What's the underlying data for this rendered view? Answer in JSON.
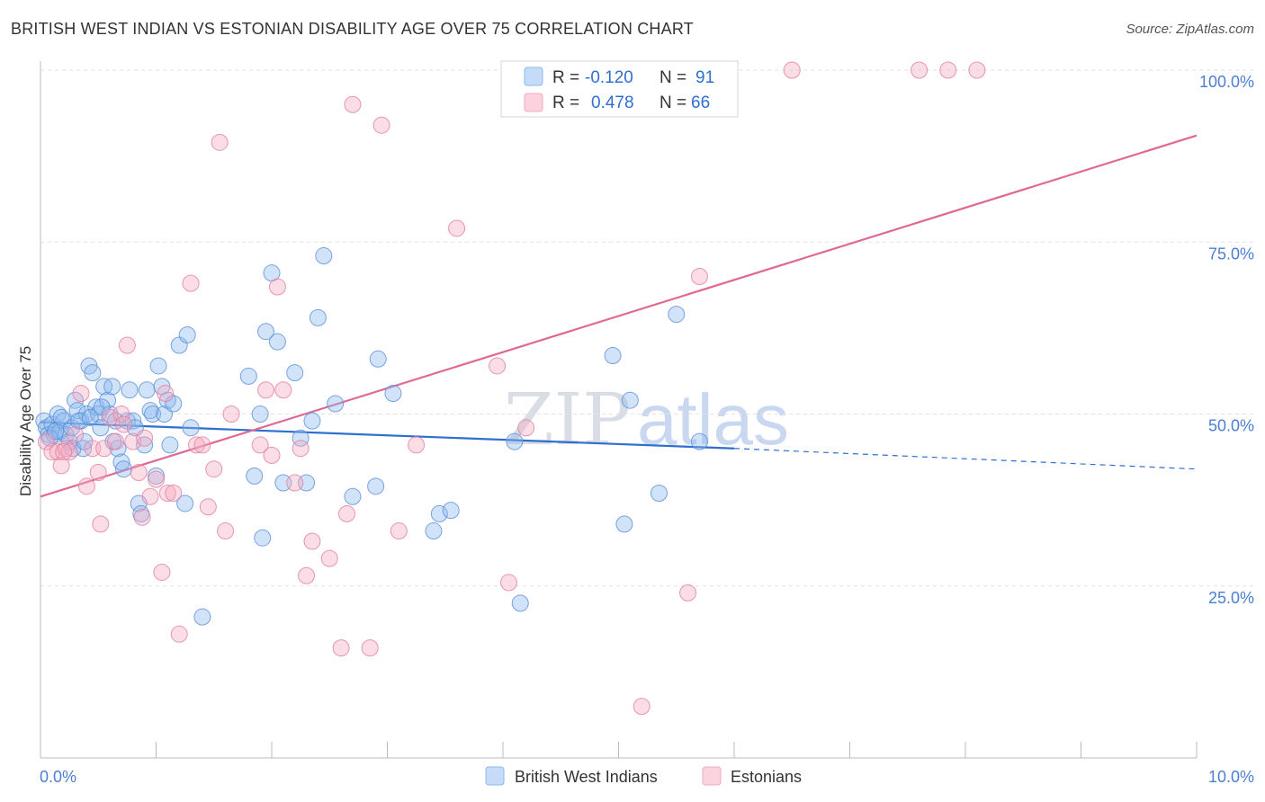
{
  "title": "BRITISH WEST INDIAN VS ESTONIAN DISABILITY AGE OVER 75 CORRELATION CHART",
  "source": "Source: ZipAtlas.com",
  "watermark": {
    "part1": "ZIP",
    "part2": "atlas"
  },
  "legend": {
    "rows": [
      {
        "r_label": "R =",
        "r_value": "-0.120",
        "n_label": "N =",
        "n_value": "91",
        "color": "#8db8ee"
      },
      {
        "r_label": "R =",
        "r_value": "0.478",
        "n_label": "N =",
        "n_value": "66",
        "color": "#f4a9c0"
      }
    ]
  },
  "bottom_legend": [
    {
      "label": "British West Indians",
      "color": "#8db8ee"
    },
    {
      "label": "Estonians",
      "color": "#f4a9c0"
    }
  ],
  "chart_data": {
    "type": "scatter",
    "title": "BRITISH WEST INDIAN VS ESTONIAN DISABILITY AGE OVER 75 CORRELATION CHART",
    "xlabel": "",
    "ylabel": "Disability Age Over 75",
    "xlim": [
      0,
      10
    ],
    "ylim": [
      0,
      102
    ],
    "x_tick_labels": {
      "min": "0.0%",
      "max": "10.0%"
    },
    "y_ticks": [
      {
        "value": 25,
        "label": "25.0%"
      },
      {
        "value": 50,
        "label": "50.0%"
      },
      {
        "value": 75,
        "label": "75.0%"
      },
      {
        "value": 100,
        "label": "100.0%"
      }
    ],
    "grid": true,
    "series": [
      {
        "name": "British West Indians",
        "color": "#8db8ee",
        "stroke": "#5b8fd8",
        "trend": {
          "x0": 0.0,
          "y0": 48.8,
          "x1": 6.0,
          "y1": 45.0,
          "dash_to_x": 10.0,
          "dash_to_y": 42.0,
          "color": "#2f6fd0"
        },
        "points": [
          [
            0.03,
            49
          ],
          [
            0.05,
            48
          ],
          [
            0.07,
            47
          ],
          [
            0.1,
            48.5
          ],
          [
            0.12,
            47
          ],
          [
            0.15,
            50
          ],
          [
            0.17,
            47.5
          ],
          [
            0.2,
            49
          ],
          [
            0.22,
            47
          ],
          [
            0.25,
            46
          ],
          [
            0.27,
            48
          ],
          [
            0.3,
            52
          ],
          [
            0.32,
            50.5
          ],
          [
            0.35,
            49
          ],
          [
            0.37,
            45
          ],
          [
            0.4,
            50
          ],
          [
            0.42,
            57
          ],
          [
            0.45,
            56
          ],
          [
            0.48,
            51
          ],
          [
            0.5,
            50
          ],
          [
            0.52,
            48
          ],
          [
            0.55,
            54
          ],
          [
            0.58,
            52
          ],
          [
            0.6,
            50
          ],
          [
            0.62,
            54
          ],
          [
            0.65,
            49
          ],
          [
            0.67,
            45
          ],
          [
            0.7,
            43
          ],
          [
            0.72,
            42
          ],
          [
            0.75,
            49
          ],
          [
            0.77,
            53.5
          ],
          [
            0.8,
            49
          ],
          [
            0.82,
            48
          ],
          [
            0.85,
            37
          ],
          [
            0.87,
            35.5
          ],
          [
            0.9,
            45.5
          ],
          [
            0.92,
            53.5
          ],
          [
            0.95,
            50.5
          ],
          [
            0.97,
            50
          ],
          [
            1.0,
            41
          ],
          [
            1.02,
            57
          ],
          [
            1.05,
            54
          ],
          [
            1.07,
            50
          ],
          [
            1.1,
            52
          ],
          [
            1.12,
            45.5
          ],
          [
            1.15,
            51.5
          ],
          [
            1.2,
            60
          ],
          [
            1.25,
            37
          ],
          [
            1.27,
            61.5
          ],
          [
            1.3,
            48
          ],
          [
            1.4,
            20.5
          ],
          [
            1.8,
            55.5
          ],
          [
            1.85,
            41
          ],
          [
            1.9,
            50
          ],
          [
            1.92,
            32
          ],
          [
            1.95,
            62
          ],
          [
            2.0,
            70.5
          ],
          [
            2.05,
            60.5
          ],
          [
            2.1,
            40
          ],
          [
            2.2,
            56
          ],
          [
            2.25,
            46.5
          ],
          [
            2.3,
            40
          ],
          [
            2.35,
            49
          ],
          [
            2.4,
            64
          ],
          [
            2.45,
            73
          ],
          [
            2.55,
            51.5
          ],
          [
            2.7,
            38
          ],
          [
            2.9,
            39.5
          ],
          [
            2.92,
            58
          ],
          [
            3.05,
            53
          ],
          [
            3.4,
            33
          ],
          [
            3.45,
            35.5
          ],
          [
            3.55,
            36
          ],
          [
            4.1,
            46
          ],
          [
            4.15,
            22.5
          ],
          [
            4.95,
            58.5
          ],
          [
            5.05,
            34
          ],
          [
            5.1,
            52
          ],
          [
            5.35,
            38.5
          ],
          [
            5.5,
            64.5
          ],
          [
            5.7,
            46
          ],
          [
            0.08,
            46.5
          ],
          [
            0.13,
            47.5
          ],
          [
            0.18,
            49.5
          ],
          [
            0.28,
            45
          ],
          [
            0.33,
            49
          ],
          [
            0.38,
            46
          ],
          [
            0.43,
            49.5
          ],
          [
            0.53,
            51
          ],
          [
            0.63,
            46
          ]
        ]
      },
      {
        "name": "Estonians",
        "color": "#f4a9c0",
        "stroke": "#e47ea0",
        "trend": {
          "x0": 0.0,
          "y0": 38.0,
          "x1": 10.0,
          "y1": 90.5,
          "color": "#e06894"
        },
        "points": [
          [
            0.05,
            46
          ],
          [
            0.1,
            44.5
          ],
          [
            0.15,
            44.5
          ],
          [
            0.18,
            42.5
          ],
          [
            0.22,
            45
          ],
          [
            0.25,
            44.5
          ],
          [
            0.3,
            47
          ],
          [
            0.35,
            53
          ],
          [
            0.4,
            39.5
          ],
          [
            0.45,
            45
          ],
          [
            0.5,
            41.5
          ],
          [
            0.52,
            34
          ],
          [
            0.55,
            45
          ],
          [
            0.6,
            49.5
          ],
          [
            0.65,
            46
          ],
          [
            0.7,
            50
          ],
          [
            0.72,
            48.5
          ],
          [
            0.75,
            60
          ],
          [
            0.8,
            46
          ],
          [
            0.85,
            41.5
          ],
          [
            0.88,
            35
          ],
          [
            0.9,
            46.5
          ],
          [
            0.95,
            38
          ],
          [
            1.0,
            40.5
          ],
          [
            1.05,
            27
          ],
          [
            1.08,
            53
          ],
          [
            1.1,
            38.5
          ],
          [
            1.15,
            38.5
          ],
          [
            1.2,
            18
          ],
          [
            1.3,
            69
          ],
          [
            1.35,
            45.5
          ],
          [
            1.4,
            45.5
          ],
          [
            1.45,
            36.5
          ],
          [
            1.5,
            42
          ],
          [
            1.55,
            89.5
          ],
          [
            1.6,
            33
          ],
          [
            1.65,
            50
          ],
          [
            1.9,
            45.5
          ],
          [
            1.95,
            53.5
          ],
          [
            2.0,
            44
          ],
          [
            2.05,
            68.5
          ],
          [
            2.1,
            53.5
          ],
          [
            2.2,
            40
          ],
          [
            2.25,
            45
          ],
          [
            2.3,
            26.5
          ],
          [
            2.35,
            31.5
          ],
          [
            2.5,
            29
          ],
          [
            2.6,
            16
          ],
          [
            2.65,
            35.5
          ],
          [
            2.7,
            95
          ],
          [
            2.85,
            16
          ],
          [
            2.95,
            92
          ],
          [
            3.1,
            33
          ],
          [
            3.25,
            45.5
          ],
          [
            3.6,
            77
          ],
          [
            3.95,
            57
          ],
          [
            4.05,
            25.5
          ],
          [
            4.2,
            48
          ],
          [
            5.2,
            7.5
          ],
          [
            5.6,
            24
          ],
          [
            5.7,
            70
          ],
          [
            6.5,
            100
          ],
          [
            7.6,
            100
          ],
          [
            7.85,
            100
          ],
          [
            8.1,
            100
          ],
          [
            0.2,
            44.5
          ]
        ]
      }
    ]
  }
}
